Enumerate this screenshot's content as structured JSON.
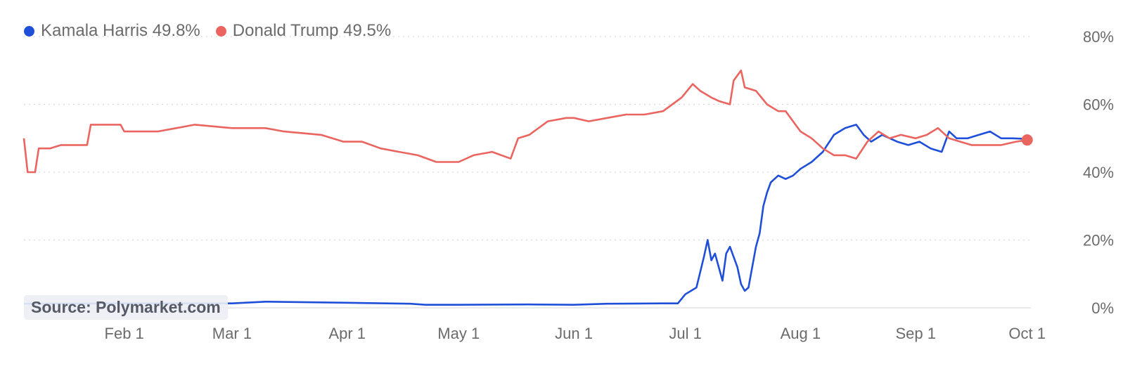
{
  "source": "Source: Polymarket.com",
  "legend": [
    {
      "label": "Kamala Harris 49.8%",
      "color": "#1f4fd8"
    },
    {
      "label": "Donald Trump 49.5%",
      "color": "#eb6560"
    }
  ],
  "chart_data": {
    "type": "line",
    "title": "",
    "xlabel": "",
    "ylabel": "",
    "x_tick_labels": [
      "Feb 1",
      "Mar 1",
      "Apr 1",
      "May 1",
      "Jun 1",
      "Jul 1",
      "Aug 1",
      "Sep 1",
      "Oct 1"
    ],
    "x_tick_dates": [
      "2024-02-01",
      "2024-03-01",
      "2024-04-01",
      "2024-05-01",
      "2024-06-01",
      "2024-07-01",
      "2024-08-01",
      "2024-09-01",
      "2024-10-01"
    ],
    "xlim": [
      "2024-01-05",
      "2024-10-02"
    ],
    "y_ticks": [
      0,
      20,
      40,
      60,
      80
    ],
    "y_tick_labels": [
      "0%",
      "20%",
      "40%",
      "60%",
      "80%"
    ],
    "ylim": [
      0,
      80
    ],
    "y_axis_position": "right",
    "grid": "horizontal dotted",
    "legend_position": "top-left",
    "series": [
      {
        "name": "Kamala Harris",
        "color": "#1f4fd8",
        "points": [
          [
            "2024-01-05",
            1.2
          ],
          [
            "2024-02-01",
            1.3
          ],
          [
            "2024-03-01",
            1.3
          ],
          [
            "2024-03-10",
            1.8
          ],
          [
            "2024-04-01",
            1.5
          ],
          [
            "2024-04-18",
            1.2
          ],
          [
            "2024-04-22",
            0.9
          ],
          [
            "2024-05-01",
            0.9
          ],
          [
            "2024-05-20",
            1.0
          ],
          [
            "2024-06-01",
            0.9
          ],
          [
            "2024-06-10",
            1.2
          ],
          [
            "2024-06-25",
            1.3
          ],
          [
            "2024-06-29",
            1.3
          ],
          [
            "2024-07-01",
            4
          ],
          [
            "2024-07-04",
            6
          ],
          [
            "2024-07-06",
            15
          ],
          [
            "2024-07-07",
            20
          ],
          [
            "2024-07-08",
            14
          ],
          [
            "2024-07-09",
            16
          ],
          [
            "2024-07-10",
            12
          ],
          [
            "2024-07-11",
            8
          ],
          [
            "2024-07-12",
            16
          ],
          [
            "2024-07-13",
            18
          ],
          [
            "2024-07-15",
            12
          ],
          [
            "2024-07-16",
            7
          ],
          [
            "2024-07-17",
            5
          ],
          [
            "2024-07-18",
            6
          ],
          [
            "2024-07-20",
            18
          ],
          [
            "2024-07-21",
            22
          ],
          [
            "2024-07-22",
            30
          ],
          [
            "2024-07-23",
            34
          ],
          [
            "2024-07-24",
            37
          ],
          [
            "2024-07-26",
            39
          ],
          [
            "2024-07-28",
            38
          ],
          [
            "2024-07-30",
            39
          ],
          [
            "2024-08-01",
            41
          ],
          [
            "2024-08-04",
            43
          ],
          [
            "2024-08-07",
            46
          ],
          [
            "2024-08-10",
            51
          ],
          [
            "2024-08-13",
            53
          ],
          [
            "2024-08-16",
            54
          ],
          [
            "2024-08-18",
            51
          ],
          [
            "2024-08-20",
            49
          ],
          [
            "2024-08-23",
            51
          ],
          [
            "2024-08-27",
            49
          ],
          [
            "2024-08-30",
            48
          ],
          [
            "2024-09-02",
            49
          ],
          [
            "2024-09-05",
            47
          ],
          [
            "2024-09-08",
            46
          ],
          [
            "2024-09-10",
            52
          ],
          [
            "2024-09-12",
            50
          ],
          [
            "2024-09-15",
            50
          ],
          [
            "2024-09-18",
            51
          ],
          [
            "2024-09-21",
            52
          ],
          [
            "2024-09-24",
            50
          ],
          [
            "2024-09-27",
            50
          ],
          [
            "2024-10-01",
            49.8
          ]
        ]
      },
      {
        "name": "Donald Trump",
        "color": "#eb6560",
        "points": [
          [
            "2024-01-05",
            50
          ],
          [
            "2024-01-06",
            40
          ],
          [
            "2024-01-08",
            40
          ],
          [
            "2024-01-09",
            47
          ],
          [
            "2024-01-12",
            47
          ],
          [
            "2024-01-15",
            48
          ],
          [
            "2024-01-22",
            48
          ],
          [
            "2024-01-23",
            54
          ],
          [
            "2024-01-31",
            54
          ],
          [
            "2024-02-01",
            52
          ],
          [
            "2024-02-10",
            52
          ],
          [
            "2024-02-15",
            53
          ],
          [
            "2024-02-20",
            54
          ],
          [
            "2024-03-01",
            53
          ],
          [
            "2024-03-10",
            53
          ],
          [
            "2024-03-15",
            52
          ],
          [
            "2024-03-25",
            51
          ],
          [
            "2024-03-31",
            49
          ],
          [
            "2024-04-05",
            49
          ],
          [
            "2024-04-10",
            47
          ],
          [
            "2024-04-15",
            46
          ],
          [
            "2024-04-20",
            45
          ],
          [
            "2024-04-25",
            43
          ],
          [
            "2024-05-01",
            43
          ],
          [
            "2024-05-05",
            45
          ],
          [
            "2024-05-10",
            46
          ],
          [
            "2024-05-15",
            44
          ],
          [
            "2024-05-17",
            50
          ],
          [
            "2024-05-20",
            51
          ],
          [
            "2024-05-25",
            55
          ],
          [
            "2024-05-30",
            56
          ],
          [
            "2024-06-01",
            56
          ],
          [
            "2024-06-05",
            55
          ],
          [
            "2024-06-10",
            56
          ],
          [
            "2024-06-15",
            57
          ],
          [
            "2024-06-20",
            57
          ],
          [
            "2024-06-25",
            58
          ],
          [
            "2024-06-30",
            62
          ],
          [
            "2024-07-03",
            66
          ],
          [
            "2024-07-05",
            64
          ],
          [
            "2024-07-08",
            62
          ],
          [
            "2024-07-10",
            61
          ],
          [
            "2024-07-13",
            60
          ],
          [
            "2024-07-14",
            67
          ],
          [
            "2024-07-16",
            70
          ],
          [
            "2024-07-17",
            65
          ],
          [
            "2024-07-20",
            64
          ],
          [
            "2024-07-23",
            60
          ],
          [
            "2024-07-26",
            58
          ],
          [
            "2024-07-28",
            58
          ],
          [
            "2024-08-01",
            52
          ],
          [
            "2024-08-04",
            50
          ],
          [
            "2024-08-07",
            47
          ],
          [
            "2024-08-10",
            45
          ],
          [
            "2024-08-13",
            45
          ],
          [
            "2024-08-16",
            44
          ],
          [
            "2024-08-19",
            49
          ],
          [
            "2024-08-22",
            52
          ],
          [
            "2024-08-25",
            50
          ],
          [
            "2024-08-28",
            51
          ],
          [
            "2024-09-01",
            50
          ],
          [
            "2024-09-04",
            51
          ],
          [
            "2024-09-07",
            53
          ],
          [
            "2024-09-10",
            50
          ],
          [
            "2024-09-13",
            49
          ],
          [
            "2024-09-16",
            48
          ],
          [
            "2024-09-20",
            48
          ],
          [
            "2024-09-24",
            48
          ],
          [
            "2024-09-28",
            49
          ],
          [
            "2024-10-01",
            49.5
          ]
        ]
      }
    ]
  }
}
